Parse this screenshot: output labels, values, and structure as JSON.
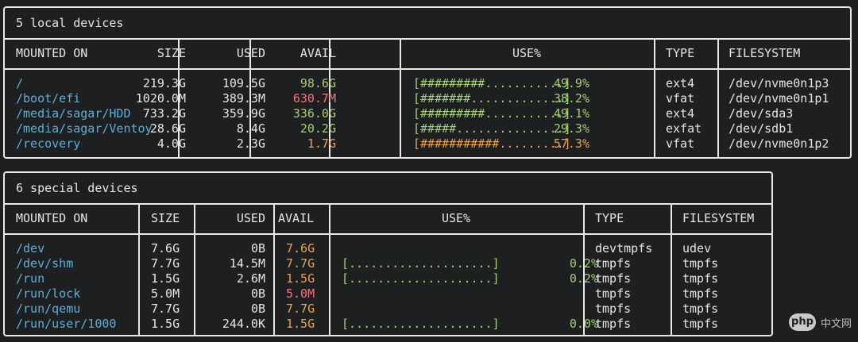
{
  "local": {
    "title": "5 local devices",
    "headers": [
      "MOUNTED ON",
      "SIZE",
      "USED",
      "AVAIL",
      "USE%",
      "TYPE",
      "FILESYSTEM"
    ],
    "rows": [
      {
        "mount": "/",
        "size": "219.3G",
        "used": "109.5G",
        "avail": "98.6G",
        "avail_color": "#a6cf78",
        "bar": "[#########...........]",
        "pct": "49.9%",
        "bar_color": "#a6cf78",
        "type": "ext4",
        "fs": "/dev/nvme0n1p3"
      },
      {
        "mount": "/boot/efi",
        "size": "1020.0M",
        "used": "389.3M",
        "avail": "630.7M",
        "avail_color": "#f2777a",
        "bar": "[#######.............]",
        "pct": "38.2%",
        "bar_color": "#a6cf78",
        "type": "vfat",
        "fs": "/dev/nvme0n1p1"
      },
      {
        "mount": "/media/sagar/HDD",
        "size": "733.2G",
        "used": "359.9G",
        "avail": "336.0G",
        "avail_color": "#a6cf78",
        "bar": "[#########...........]",
        "pct": "49.1%",
        "bar_color": "#a6cf78",
        "type": "ext4",
        "fs": "/dev/sda3"
      },
      {
        "mount": "/media/sagar/Ventoy",
        "size": "28.6G",
        "used": "8.4G",
        "avail": "20.2G",
        "avail_color": "#a6cf78",
        "bar": "[#####...............]",
        "pct": "29.3%",
        "bar_color": "#a6cf78",
        "type": "exfat",
        "fs": "/dev/sdb1"
      },
      {
        "mount": "/recovery",
        "size": "4.0G",
        "used": "2.3G",
        "avail": "1.7G",
        "avail_color": "#e8a35a",
        "bar": "[###########.........]",
        "pct": "57.3%",
        "bar_color": "#e8a35a",
        "type": "vfat",
        "fs": "/dev/nvme0n1p2"
      }
    ]
  },
  "special": {
    "title": "6 special devices",
    "headers": [
      "MOUNTED ON",
      "SIZE",
      "USED",
      "AVAIL",
      "USE%",
      "TYPE",
      "FILESYSTEM"
    ],
    "rows": [
      {
        "mount": "/dev",
        "size": "7.6G",
        "used": "0B",
        "avail": "7.6G",
        "avail_color": "#e8a35a",
        "bar": "",
        "pct": "",
        "bar_color": "#a6cf78",
        "type": "devtmpfs",
        "fs": "udev"
      },
      {
        "mount": "/dev/shm",
        "size": "7.7G",
        "used": "14.5M",
        "avail": "7.7G",
        "avail_color": "#e8a35a",
        "bar": "[....................]",
        "pct": "0.2%",
        "bar_color": "#a6cf78",
        "type": "tmpfs",
        "fs": "tmpfs"
      },
      {
        "mount": "/run",
        "size": "1.5G",
        "used": "2.6M",
        "avail": "1.5G",
        "avail_color": "#e8a35a",
        "bar": "[....................]",
        "pct": "0.2%",
        "bar_color": "#a6cf78",
        "type": "tmpfs",
        "fs": "tmpfs"
      },
      {
        "mount": "/run/lock",
        "size": "5.0M",
        "used": "0B",
        "avail": "5.0M",
        "avail_color": "#f2777a",
        "bar": "",
        "pct": "",
        "bar_color": "#a6cf78",
        "type": "tmpfs",
        "fs": "tmpfs"
      },
      {
        "mount": "/run/qemu",
        "size": "7.7G",
        "used": "0B",
        "avail": "7.7G",
        "avail_color": "#e8a35a",
        "bar": "",
        "pct": "",
        "bar_color": "#a6cf78",
        "type": "tmpfs",
        "fs": "tmpfs"
      },
      {
        "mount": "/run/user/1000",
        "size": "1.5G",
        "used": "244.0K",
        "avail": "1.5G",
        "avail_color": "#e8a35a",
        "bar": "[....................]",
        "pct": "0.0%",
        "bar_color": "#a6cf78",
        "type": "tmpfs",
        "fs": "tmpfs"
      }
    ]
  },
  "watermark": {
    "logo": "php",
    "text": "中文网"
  }
}
